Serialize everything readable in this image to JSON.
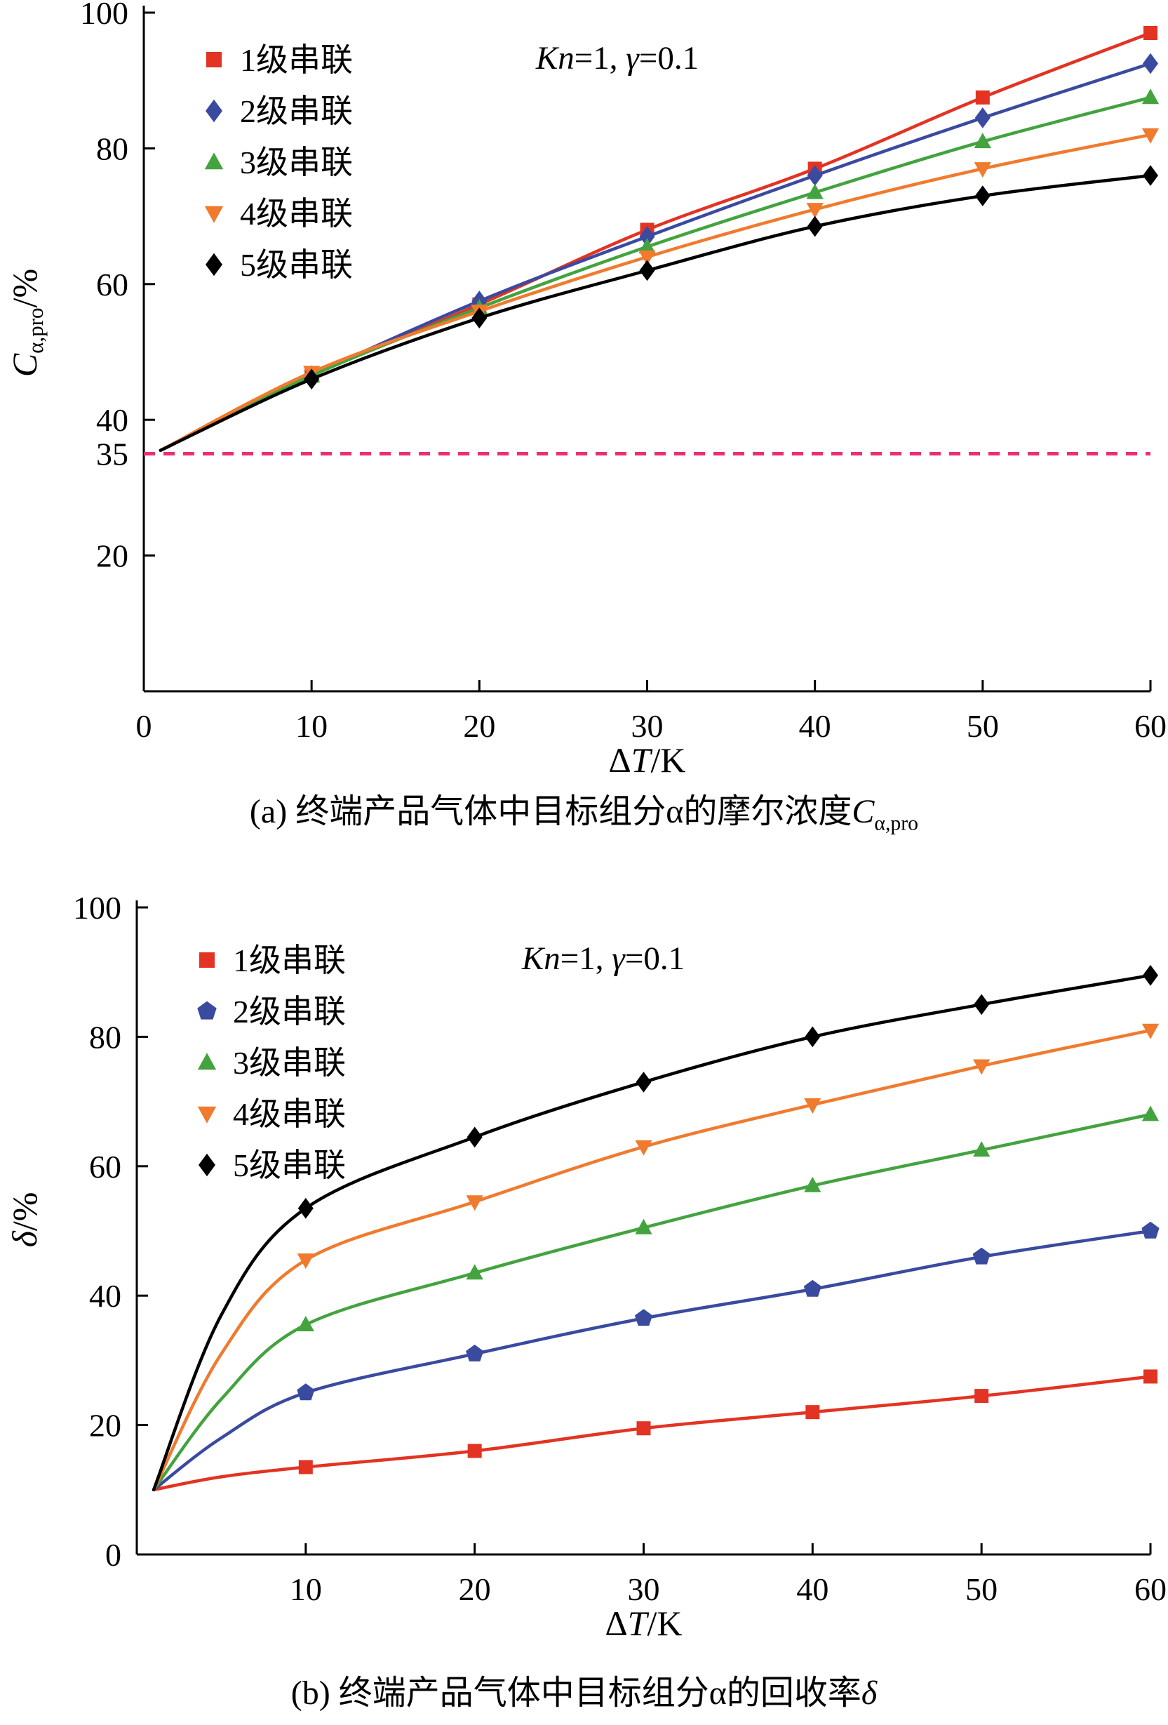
{
  "page": {
    "background": "#ffffff"
  },
  "chart_data": [
    {
      "id": "a",
      "type": "line",
      "annotation_parts": [
        {
          "t": "Kn",
          "i": true
        },
        {
          "t": "=1, "
        },
        {
          "t": "γ",
          "i": true
        },
        {
          "t": "=0.1"
        }
      ],
      "ylabel_parts": [
        {
          "t": "C",
          "i": true
        },
        {
          "t": "α,pro",
          "sub": true
        },
        {
          "t": "/%"
        }
      ],
      "xlabel_parts": [
        {
          "t": "Δ"
        },
        {
          "t": "T",
          "i": true
        },
        {
          "t": "/K"
        }
      ],
      "caption_parts": [
        {
          "t": "(a) 终端产品气体中目标组分α的摩尔浓度"
        },
        {
          "t": "C",
          "i": true
        },
        {
          "t": "α,pro",
          "sub": true
        }
      ],
      "xlim": [
        0,
        60
      ],
      "ylim": [
        0,
        100
      ],
      "xticks": [
        0,
        10,
        20,
        30,
        40,
        50,
        60
      ],
      "yticks": [
        20,
        40,
        60,
        80,
        100
      ],
      "grid": false,
      "legend_position": "top-left",
      "ref_line": {
        "y": 35,
        "label": "35",
        "color": "#ee2d74"
      },
      "x": [
        1,
        10,
        20,
        30,
        40,
        50,
        60
      ],
      "marker_from_index": 1,
      "series": [
        {
          "name": "1级串联",
          "color": "#e23323",
          "marker": "square",
          "values": [
            35.5,
            46.5,
            57,
            68,
            77,
            87.5,
            97
          ]
        },
        {
          "name": "2级串联",
          "color": "#3a4a9f",
          "marker": "diamond",
          "values": [
            35.5,
            46.5,
            57.5,
            67,
            76,
            84.5,
            92.5
          ]
        },
        {
          "name": "3级串联",
          "color": "#43a33f",
          "marker": "triangle-up",
          "values": [
            35.5,
            46.5,
            56.5,
            65.5,
            73.5,
            81,
            87.5
          ]
        },
        {
          "name": "4级串联",
          "color": "#f07a2e",
          "marker": "triangle-down",
          "values": [
            35.5,
            47,
            56,
            64,
            71,
            77,
            82
          ]
        },
        {
          "name": "5级串联",
          "color": "#000000",
          "marker": "diamond",
          "values": [
            35.5,
            46,
            55,
            62,
            68.5,
            73,
            76
          ]
        }
      ]
    },
    {
      "id": "b",
      "type": "line",
      "annotation_parts": [
        {
          "t": "Kn",
          "i": true
        },
        {
          "t": "=1, "
        },
        {
          "t": "γ",
          "i": true
        },
        {
          "t": "=0.1"
        }
      ],
      "ylabel_parts": [
        {
          "t": "δ",
          "i": true
        },
        {
          "t": "/%"
        }
      ],
      "xlabel_parts": [
        {
          "t": "Δ"
        },
        {
          "t": "T",
          "i": true
        },
        {
          "t": "/K"
        }
      ],
      "caption_parts": [
        {
          "t": "(b) 终端产品气体中目标组分α的回收率"
        },
        {
          "t": "δ",
          "i": true
        }
      ],
      "xlim": [
        0,
        60
      ],
      "ylim": [
        0,
        100
      ],
      "xticks": [
        10,
        20,
        30,
        40,
        50,
        60
      ],
      "yticks": [
        0,
        20,
        40,
        60,
        80,
        100
      ],
      "grid": false,
      "legend_position": "top-left",
      "x": [
        1,
        5,
        10,
        20,
        30,
        40,
        50,
        60
      ],
      "marker_from_index": 2,
      "series": [
        {
          "name": "1级串联",
          "color": "#e23323",
          "marker": "square",
          "values": [
            10,
            12,
            13.5,
            16,
            19.5,
            22,
            24.5,
            27.5
          ]
        },
        {
          "name": "2级串联",
          "color": "#3a4a9f",
          "marker": "pentagon",
          "values": [
            10,
            18,
            25,
            31,
            36.5,
            41,
            46,
            50
          ]
        },
        {
          "name": "3级串联",
          "color": "#43a33f",
          "marker": "triangle-up",
          "values": [
            10,
            24,
            35.5,
            43.5,
            50.5,
            57,
            62.5,
            68
          ]
        },
        {
          "name": "4级串联",
          "color": "#f07a2e",
          "marker": "triangle-down",
          "values": [
            10,
            31,
            45.5,
            54.5,
            63,
            69.5,
            75.5,
            81
          ]
        },
        {
          "name": "5级串联",
          "color": "#000000",
          "marker": "diamond",
          "values": [
            10,
            37,
            53.5,
            64.5,
            73,
            80,
            85,
            89.5
          ]
        }
      ]
    }
  ]
}
